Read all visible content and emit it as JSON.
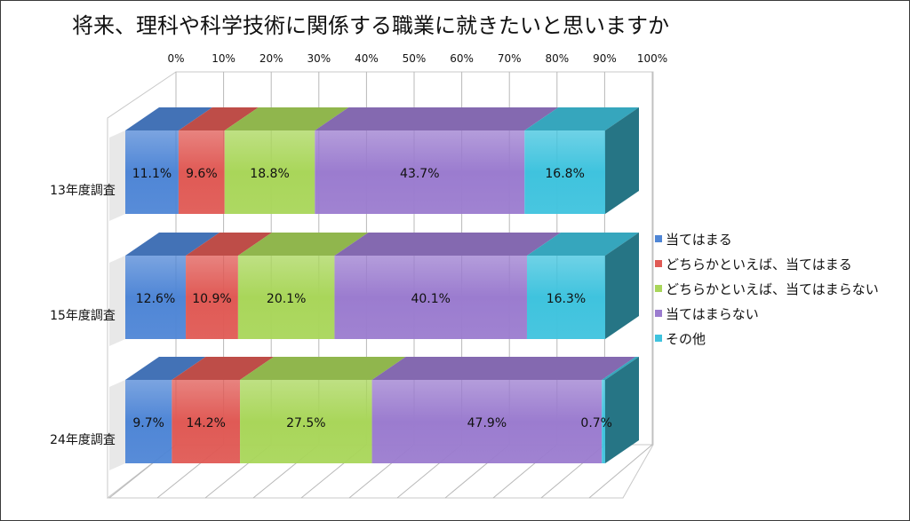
{
  "chart_data": {
    "type": "bar",
    "title": "将来、理科や科学技術に関係する職業に就きたいと思いますか",
    "categories": [
      "13年度調査",
      "15年度調査",
      "24年度調査"
    ],
    "x_ticks": [
      "0%",
      "10%",
      "20%",
      "30%",
      "40%",
      "50%",
      "60%",
      "70%",
      "80%",
      "90%",
      "100%"
    ],
    "xlim": [
      0,
      100
    ],
    "stacked": true,
    "orientation": "horizontal",
    "grid": true,
    "legend_position": "right",
    "series": [
      {
        "name": "当てはまる",
        "values": [
          11.1,
          12.6,
          9.7
        ],
        "labels": [
          "11.1%",
          "12.6%",
          "9.7%"
        ],
        "color": "#4f86d6"
      },
      {
        "name": "どちらかといえば、当てはまる",
        "values": [
          9.6,
          10.9,
          14.2
        ],
        "labels": [
          "9.6%",
          "10.9%",
          "14.2%"
        ],
        "color": "#e05a55"
      },
      {
        "name": "どちらかといえば、当てはまらない",
        "values": [
          18.8,
          20.1,
          27.5
        ],
        "labels": [
          "18.8%",
          "20.1%",
          "27.5%"
        ],
        "color": "#a9d65a"
      },
      {
        "name": "当てはまらない",
        "values": [
          43.7,
          40.1,
          47.9
        ],
        "labels": [
          "43.7%",
          "40.1%",
          "47.9%"
        ],
        "color": "#9b7ccf"
      },
      {
        "name": "その他",
        "values": [
          16.8,
          16.3,
          0.7
        ],
        "labels": [
          "16.8%",
          "16.3%",
          "0.7%"
        ],
        "color": "#3fc3de"
      }
    ]
  }
}
